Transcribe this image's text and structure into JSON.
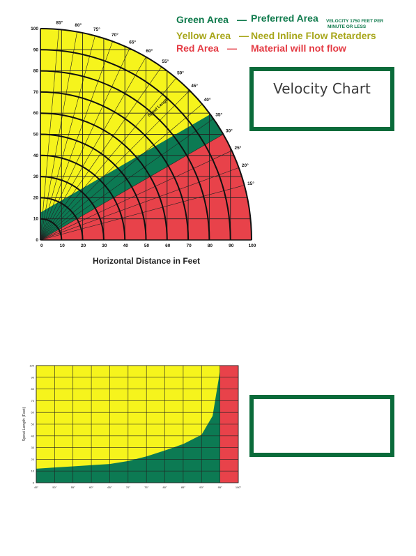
{
  "legend": {
    "green_label": "Green Area",
    "green_text": "Preferred Area",
    "green_note_1": "VELOCITY 1750 FEET PER",
    "green_note_2": "MINUTE OR LESS",
    "yellow_label": "Yellow Area",
    "yellow_text": "Need Inline Flow Retarders",
    "red_label": "Red Area",
    "red_text": "Material will not flow",
    "dash": "—"
  },
  "velocity_box": {
    "title": "Velocity Chart"
  },
  "colors": {
    "green": "#0c7a53",
    "yellow": "#f6f41c",
    "red": "#e8424a",
    "box_border": "#0a6b3a",
    "green_text": "#0f7a4c",
    "yellow_text": "#a7a61a",
    "red_text": "#e43a43"
  },
  "chart_data": [
    {
      "type": "area",
      "xlabel": "Horizontal Distance in Feet",
      "ylabel": "",
      "xlim": [
        0,
        100
      ],
      "ylim": [
        0,
        100
      ],
      "x_ticks": [
        "0",
        "10",
        "20",
        "30",
        "40",
        "50",
        "60",
        "70",
        "80",
        "90",
        "100"
      ],
      "y_ticks": [
        "0",
        "10",
        "20",
        "30",
        "40",
        "50",
        "60",
        "70",
        "80",
        "90",
        "100"
      ],
      "angle_labels": [
        "85°",
        "80°",
        "75°",
        "70°",
        "65°",
        "60°",
        "55°",
        "50°",
        "45°",
        "40°",
        "35°",
        "30°",
        "25°",
        "20°",
        "15°"
      ],
      "angles": [
        85,
        80,
        75,
        70,
        65,
        60,
        55,
        50,
        45,
        40,
        35,
        30,
        25,
        20,
        15
      ],
      "arc_lengths": [
        10,
        20,
        30,
        40,
        50,
        60,
        70,
        80,
        90,
        100
      ],
      "arc_label": "Spout Length",
      "regions": {
        "red": "below 30° from origin (0,0)",
        "green": "band between 30° line from (0,0) and 30° line from (0,13)",
        "yellow": "above 30° line from (0,13)"
      },
      "green_band_offset": 13,
      "red_angle": 30,
      "grid": true
    },
    {
      "type": "area",
      "xlabel": "",
      "ylabel": "Spout Length (Feet)",
      "ylim": [
        0,
        100
      ],
      "x_ticks": [
        "45°",
        "50°",
        "55°",
        "60°",
        "65°",
        "70°",
        "75°",
        "80°",
        "85°",
        "90°",
        "95°",
        "100°"
      ],
      "y_ticks": [
        "0",
        "10",
        "20",
        "30",
        "40",
        "50",
        "60",
        "70",
        "80",
        "90",
        "100"
      ],
      "x": [
        45,
        50,
        55,
        60,
        65,
        70,
        75,
        80,
        85,
        90,
        93,
        95
      ],
      "series": [
        {
          "values": [
            12,
            13,
            14,
            15,
            16,
            18.5,
            22.5,
            27.5,
            33,
            41,
            57,
            95
          ]
        }
      ],
      "red_from_x": 95,
      "grid": true
    }
  ]
}
